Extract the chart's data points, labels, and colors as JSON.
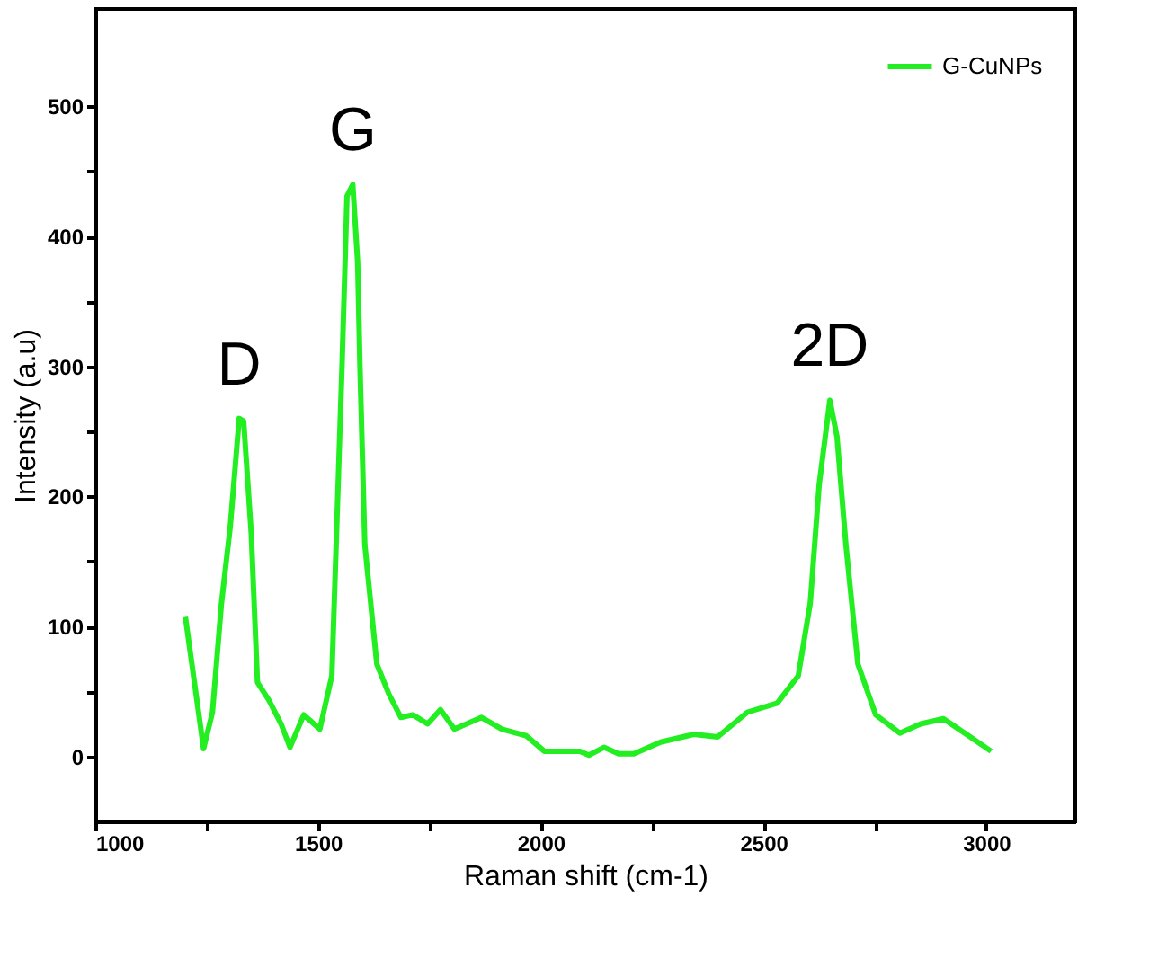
{
  "chart_data": {
    "type": "line",
    "xlabel": "Raman shift (cm-1)",
    "ylabel": "Intensity (a.u)",
    "xlim": [
      1000,
      3200
    ],
    "ylim": [
      -50,
      575
    ],
    "xticks": [
      1000,
      {
        "value": 1250,
        "label": null
      },
      1500,
      {
        "value": 1750,
        "label": null
      },
      2000,
      {
        "value": 2250,
        "label": null
      },
      2500,
      {
        "value": 2750,
        "label": null
      },
      3000
    ],
    "yticks": [
      0,
      {
        "value": 50,
        "label": null
      },
      100,
      {
        "value": 150,
        "label": null
      },
      200,
      {
        "value": 250,
        "label": null
      },
      300,
      {
        "value": 350,
        "label": null
      },
      400,
      {
        "value": 450,
        "label": null
      },
      500
    ],
    "grid": false,
    "legend": "top right",
    "marker": "none",
    "line_style": "solid",
    "annotations": [
      {
        "text": "D",
        "x": 1323,
        "y": 260
      },
      {
        "text": "G",
        "x": 1578,
        "y": 440
      },
      {
        "text": "2D",
        "x": 2649,
        "y": 274
      }
    ],
    "series": [
      {
        "name": "G-CuNPs",
        "color": "#22ee22",
        "x": [
          1202,
          1243,
          1263,
          1283,
          1303,
          1323,
          1333,
          1350,
          1364,
          1390,
          1417,
          1437,
          1468,
          1504,
          1531,
          1554,
          1565,
          1578,
          1589,
          1594,
          1605,
          1632,
          1659,
          1686,
          1713,
          1746,
          1775,
          1806,
          1867,
          1913,
          1967,
          2008,
          2088,
          2108,
          2142,
          2175,
          2209,
          2269,
          2343,
          2397,
          2464,
          2531,
          2578,
          2605,
          2625,
          2649,
          2665,
          2685,
          2712,
          2752,
          2806,
          2853,
          2904,
          2960,
          3011
        ],
        "values": [
          108,
          6,
          34,
          117,
          177,
          260,
          258,
          172,
          57,
          43,
          25,
          7,
          32,
          21,
          62,
          302,
          431,
          440,
          380,
          302,
          163,
          71,
          48,
          30,
          32,
          25,
          36,
          21,
          30,
          21,
          16,
          4,
          4,
          1,
          7,
          2,
          2,
          11,
          17,
          15,
          34,
          41,
          62,
          118,
          209,
          274,
          246,
          163,
          71,
          32,
          18,
          25,
          29,
          16,
          4
        ]
      }
    ]
  }
}
